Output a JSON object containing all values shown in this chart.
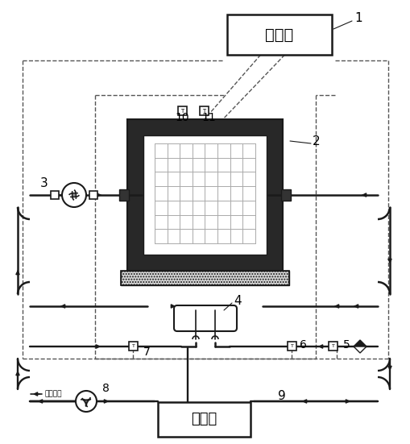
{
  "bg": "#ffffff",
  "lc": "#1a1a1a",
  "dc": "#555555",
  "gray_dark": "#282828",
  "gray_med": "#aaaaaa",
  "controller_label": "控制器",
  "heat_user_label": "热用户",
  "water_label": "接补水管",
  "labels": {
    "1": "1",
    "2": "2",
    "3": "3",
    "4": "4",
    "5": "5",
    "6": "6",
    "7": "7",
    "8": "8",
    "9": "9",
    "10": "10",
    "11": "11"
  },
  "figsize": [
    5.1,
    5.51
  ],
  "dpi": 100
}
